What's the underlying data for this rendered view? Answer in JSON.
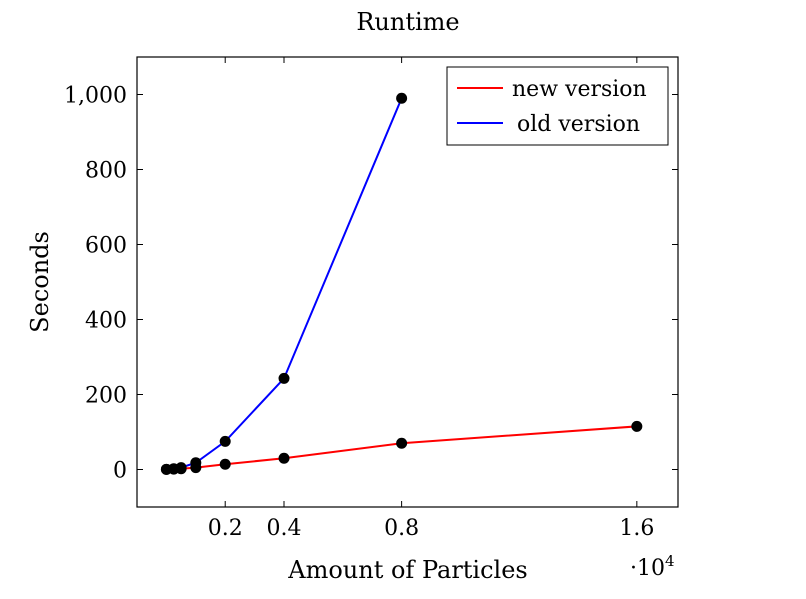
{
  "chart_data": {
    "type": "line",
    "title": "Runtime",
    "xlabel": "Amount of Particles",
    "ylabel": "Seconds",
    "x_scale_label": "·10",
    "x_scale_exponent": "4",
    "xlim": [
      -0.1,
      1.74
    ],
    "ylim": [
      -100,
      1100
    ],
    "xticks": [
      0.2,
      0.4,
      0.8,
      1.6
    ],
    "xtick_labels": [
      "0.2",
      "0.4",
      "0.8",
      "1.6"
    ],
    "yticks": [
      0,
      200,
      400,
      600,
      800,
      1000
    ],
    "ytick_labels": [
      "0",
      "200",
      "400",
      "600",
      "800",
      "1,000"
    ],
    "legend_position": "top-right",
    "series": [
      {
        "name": "new version",
        "color": "#ff0000",
        "x": [
          0.0,
          0.025,
          0.05,
          0.1,
          0.2,
          0.4,
          0.8,
          1.6
        ],
        "y": [
          0.5,
          1,
          2,
          5,
          14,
          30,
          70,
          115
        ]
      },
      {
        "name": "old version",
        "color": "#0000ff",
        "x": [
          0.0,
          0.025,
          0.05,
          0.1,
          0.2,
          0.4,
          0.8
        ],
        "y": [
          0.5,
          2,
          5,
          18,
          75,
          243,
          990
        ]
      }
    ]
  }
}
